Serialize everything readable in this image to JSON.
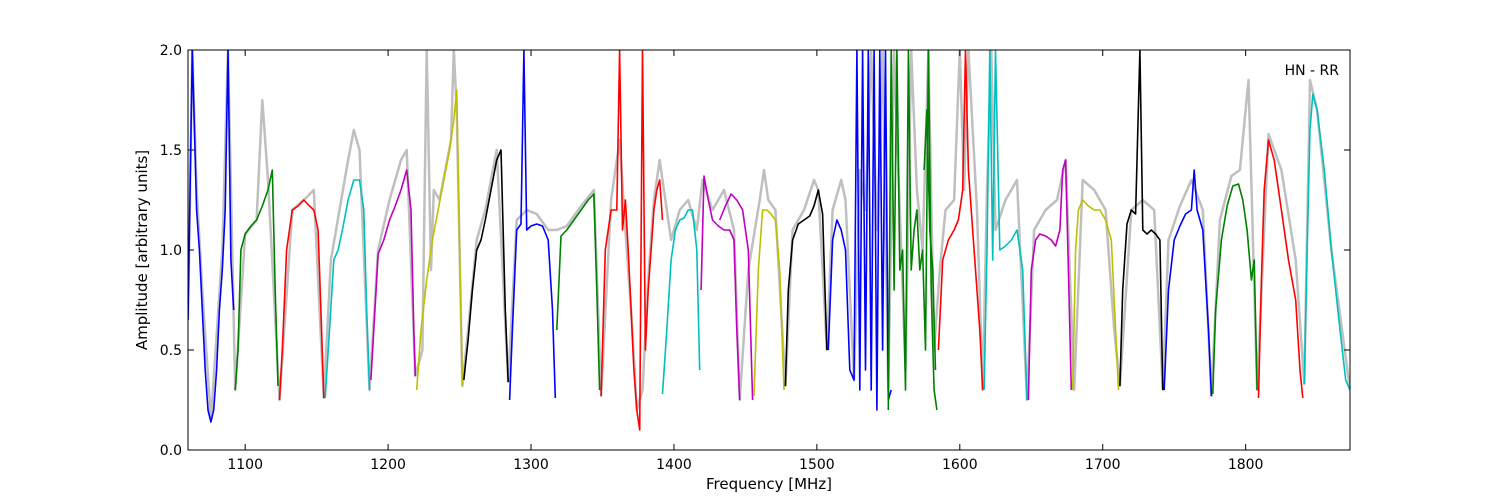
{
  "chart_data": {
    "type": "line",
    "title": "",
    "annotation": "HN - RR",
    "xlabel": "Frequency [MHz]",
    "ylabel": "Amplitude [arbitrary units]",
    "xlim": [
      1060,
      1873
    ],
    "ylim": [
      0.0,
      2.0
    ],
    "xticks": [
      1100,
      1200,
      1300,
      1400,
      1500,
      1600,
      1700,
      1800
    ],
    "xtick_labels": [
      "1100",
      "1200",
      "1300",
      "1400",
      "1500",
      "1600",
      "1700",
      "1800"
    ],
    "yticks": [
      0.0,
      0.5,
      1.0,
      1.5,
      2.0
    ],
    "ytick_labels": [
      "0.0",
      "0.5",
      "1.0",
      "1.5",
      "2.0"
    ],
    "grid": false,
    "colors": {
      "reference": "#bfbfbf",
      "cycle": [
        "#0000ff",
        "#008000",
        "#ff0000",
        "#00bfbf",
        "#bf00bf",
        "#bfbf00",
        "#000000"
      ]
    },
    "series": [
      {
        "color": "#0000ff",
        "x": [
          1060,
          1063,
          1066,
          1068,
          1070,
          1072,
          1074,
          1076,
          1078,
          1080,
          1082,
          1084,
          1086,
          1088,
          1090,
          1092
        ],
        "y": [
          0.65,
          2.0,
          1.2,
          1.0,
          0.7,
          0.4,
          0.2,
          0.14,
          0.2,
          0.4,
          0.7,
          0.9,
          1.2,
          2.0,
          0.95,
          0.7
        ]
      },
      {
        "color": "#008000",
        "x": [
          1093,
          1095,
          1097,
          1100,
          1104,
          1108,
          1112,
          1116,
          1119,
          1121,
          1123
        ],
        "y": [
          0.3,
          0.5,
          1.0,
          1.08,
          1.12,
          1.15,
          1.22,
          1.3,
          1.4,
          0.8,
          0.32
        ]
      },
      {
        "color": "#ff0000",
        "x": [
          1124,
          1126,
          1129,
          1133,
          1137,
          1141,
          1145,
          1148,
          1151,
          1153,
          1155
        ],
        "y": [
          0.25,
          0.5,
          1.0,
          1.2,
          1.22,
          1.25,
          1.22,
          1.2,
          1.1,
          0.7,
          0.26
        ]
      },
      {
        "color": "#00bfbf",
        "x": [
          1156,
          1159,
          1162,
          1165,
          1168,
          1172,
          1176,
          1180,
          1183,
          1185,
          1187
        ],
        "y": [
          0.26,
          0.6,
          0.95,
          1.0,
          1.1,
          1.25,
          1.35,
          1.35,
          1.2,
          0.7,
          0.3
        ]
      },
      {
        "color": "#bf00bf",
        "x": [
          1188,
          1190,
          1193,
          1197,
          1201,
          1205,
          1209,
          1213,
          1216,
          1218,
          1219
        ],
        "y": [
          0.35,
          0.6,
          0.98,
          1.05,
          1.15,
          1.22,
          1.3,
          1.4,
          1.2,
          0.6,
          0.37
        ]
      },
      {
        "color": "#bfbf00",
        "x": [
          1220,
          1223,
          1227,
          1231,
          1235,
          1239,
          1243,
          1246,
          1248,
          1250,
          1252
        ],
        "y": [
          0.3,
          0.6,
          0.85,
          1.05,
          1.2,
          1.35,
          1.5,
          1.65,
          1.8,
          1.0,
          0.32
        ]
      },
      {
        "color": "#000000",
        "x": [
          1253,
          1256,
          1259,
          1262,
          1265,
          1268,
          1272,
          1276,
          1279,
          1282,
          1284
        ],
        "y": [
          0.35,
          0.55,
          0.8,
          1.0,
          1.05,
          1.15,
          1.3,
          1.45,
          1.5,
          0.7,
          0.34
        ]
      },
      {
        "color": "#0000ff",
        "x": [
          1285,
          1287,
          1290,
          1293,
          1295,
          1297,
          1300,
          1304,
          1308,
          1312,
          1315,
          1317
        ],
        "y": [
          0.25,
          0.6,
          1.1,
          1.13,
          2.0,
          1.1,
          1.12,
          1.13,
          1.12,
          1.05,
          0.7,
          0.26
        ]
      },
      {
        "color": "#008000",
        "x": [
          1318,
          1321,
          1325,
          1330,
          1335,
          1340,
          1344,
          1346,
          1348
        ],
        "y": [
          0.6,
          1.07,
          1.1,
          1.15,
          1.2,
          1.25,
          1.28,
          0.8,
          0.3
        ]
      },
      {
        "color": "#ff0000",
        "x": [
          1349,
          1352,
          1356,
          1360,
          1362,
          1364,
          1366,
          1368,
          1370,
          1372,
          1374,
          1376,
          1378,
          1380,
          1382,
          1384,
          1386,
          1388,
          1390,
          1392
        ],
        "y": [
          0.27,
          1.0,
          1.2,
          1.2,
          2.0,
          1.1,
          1.25,
          1.0,
          0.7,
          0.4,
          0.2,
          0.1,
          2.0,
          0.5,
          0.8,
          1.0,
          1.2,
          1.3,
          1.35,
          1.15
        ]
      },
      {
        "color": "#00bfbf",
        "x": [
          1392,
          1395,
          1398,
          1401,
          1404,
          1407,
          1410,
          1413,
          1416,
          1418
        ],
        "y": [
          0.28,
          0.6,
          0.95,
          1.1,
          1.15,
          1.16,
          1.2,
          1.2,
          1.0,
          0.4
        ]
      },
      {
        "color": "#bf00bf",
        "x": [
          1419,
          1421,
          1424,
          1427,
          1431,
          1435,
          1439,
          1442,
          1444,
          1446
        ],
        "y": [
          0.8,
          1.37,
          1.25,
          1.15,
          1.12,
          1.1,
          1.1,
          1.05,
          0.6,
          0.25
        ]
      },
      {
        "color": "#bf00bf",
        "x": [
          1432,
          1436,
          1440,
          1444,
          1448,
          1452,
          1455
        ],
        "y": [
          1.15,
          1.22,
          1.28,
          1.25,
          1.2,
          1.0,
          0.25
        ]
      },
      {
        "color": "#bfbf00",
        "x": [
          1456,
          1459,
          1462,
          1465,
          1468,
          1471,
          1474,
          1477
        ],
        "y": [
          0.27,
          0.9,
          1.2,
          1.2,
          1.18,
          1.15,
          0.9,
          0.3
        ]
      },
      {
        "color": "#000000",
        "x": [
          1478,
          1480,
          1483,
          1487,
          1491,
          1495,
          1498,
          1501,
          1504,
          1507
        ],
        "y": [
          0.32,
          0.8,
          1.05,
          1.13,
          1.15,
          1.17,
          1.22,
          1.3,
          1.18,
          0.5
        ]
      },
      {
        "color": "#0000ff",
        "x": [
          1508,
          1511,
          1514,
          1517,
          1520,
          1523,
          1526,
          1528,
          1530,
          1532,
          1534,
          1536,
          1538,
          1540,
          1542,
          1544,
          1546,
          1548,
          1550,
          1552
        ],
        "y": [
          0.5,
          1.05,
          1.15,
          1.1,
          1.0,
          0.4,
          0.35,
          2.0,
          0.3,
          2.0,
          0.4,
          2.0,
          0.3,
          2.0,
          0.2,
          2.0,
          0.5,
          2.0,
          0.25,
          0.3
        ]
      },
      {
        "color": "#008000",
        "x": [
          1550,
          1552,
          1554,
          1556,
          1558,
          1560,
          1562,
          1564,
          1566,
          1568,
          1570,
          1572,
          1574,
          1576,
          1578,
          1580,
          1582,
          1584
        ],
        "y": [
          0.2,
          2.0,
          0.8,
          2.0,
          0.9,
          1.0,
          0.3,
          2.0,
          0.9,
          1.1,
          1.2,
          0.9,
          1.0,
          0.5,
          2.0,
          0.8,
          0.3,
          0.2
        ]
      },
      {
        "color": "#008000",
        "x": [
          1575,
          1577,
          1579,
          1581,
          1583
        ],
        "y": [
          1.4,
          1.7,
          1.1,
          0.9,
          0.4
        ]
      },
      {
        "color": "#ff0000",
        "x": [
          1585,
          1588,
          1592,
          1596,
          1599,
          1602,
          1604,
          1606,
          1610,
          1614,
          1616
        ],
        "y": [
          0.5,
          0.95,
          1.05,
          1.1,
          1.15,
          1.3,
          2.0,
          1.4,
          1.0,
          0.6,
          0.3
        ]
      },
      {
        "color": "#00bfbf",
        "x": [
          1617,
          1619,
          1621,
          1623,
          1625,
          1628,
          1632,
          1636,
          1640,
          1644,
          1647
        ],
        "y": [
          0.3,
          1.0,
          2.0,
          0.95,
          2.0,
          1.0,
          1.02,
          1.05,
          1.1,
          0.9,
          0.25
        ]
      },
      {
        "color": "#bf00bf",
        "x": [
          1648,
          1650,
          1653,
          1656,
          1660,
          1664,
          1667,
          1670,
          1672,
          1674,
          1676,
          1678
        ],
        "y": [
          0.25,
          0.9,
          1.05,
          1.08,
          1.07,
          1.05,
          1.02,
          1.1,
          1.4,
          1.45,
          0.9,
          0.3
        ]
      },
      {
        "color": "#bfbf00",
        "x": [
          1679,
          1681,
          1683,
          1686,
          1690,
          1694,
          1698,
          1702,
          1706,
          1709,
          1711
        ],
        "y": [
          0.3,
          1.0,
          1.2,
          1.25,
          1.22,
          1.2,
          1.2,
          1.15,
          1.05,
          0.6,
          0.3
        ]
      },
      {
        "color": "#000000",
        "x": [
          1712,
          1714,
          1717,
          1720,
          1723,
          1726,
          1728,
          1731,
          1734,
          1737,
          1740,
          1742
        ],
        "y": [
          0.32,
          0.8,
          1.13,
          1.2,
          1.18,
          2.0,
          1.1,
          1.08,
          1.1,
          1.08,
          1.05,
          0.3
        ]
      },
      {
        "color": "#0000ff",
        "x": [
          1743,
          1746,
          1750,
          1754,
          1758,
          1762,
          1764,
          1766,
          1770,
          1774,
          1776
        ],
        "y": [
          0.3,
          0.8,
          1.05,
          1.12,
          1.18,
          1.2,
          1.4,
          1.2,
          1.1,
          0.6,
          0.27
        ]
      },
      {
        "color": "#008000",
        "x": [
          1777,
          1779,
          1783,
          1787,
          1791,
          1795,
          1798,
          1801,
          1804,
          1806,
          1808
        ],
        "y": [
          0.28,
          0.7,
          1.05,
          1.22,
          1.32,
          1.33,
          1.25,
          1.1,
          0.85,
          0.95,
          0.3
        ]
      },
      {
        "color": "#ff0000",
        "x": [
          1809,
          1811,
          1813,
          1816,
          1820,
          1825,
          1830,
          1835,
          1838,
          1840
        ],
        "y": [
          0.26,
          0.85,
          1.3,
          1.55,
          1.45,
          1.2,
          0.95,
          0.75,
          0.4,
          0.26
        ]
      },
      {
        "color": "#00bfbf",
        "x": [
          1841,
          1843,
          1845,
          1847,
          1850,
          1855,
          1860,
          1866,
          1870,
          1873
        ],
        "y": [
          0.33,
          1.0,
          1.6,
          1.78,
          1.7,
          1.4,
          1.0,
          0.6,
          0.35,
          0.3
        ]
      }
    ],
    "reference": {
      "color": "#bfbf00",
      "x": [
        1060,
        1063,
        1066,
        1070,
        1076,
        1084,
        1088,
        1093,
        1100,
        1108,
        1112,
        1116,
        1124,
        1133,
        1141,
        1148,
        1155,
        1160,
        1166,
        1172,
        1176,
        1180,
        1187,
        1193,
        1201,
        1209,
        1213,
        1219,
        1224,
        1227,
        1230,
        1232,
        1236,
        1244,
        1246,
        1248,
        1252,
        1256,
        1262,
        1268,
        1276,
        1284,
        1290,
        1297,
        1304,
        1312,
        1318,
        1325,
        1335,
        1344,
        1349,
        1356,
        1362,
        1366,
        1370,
        1374,
        1378,
        1382,
        1386,
        1390,
        1392,
        1398,
        1404,
        1410,
        1416,
        1420,
        1427,
        1435,
        1442,
        1446,
        1452,
        1460,
        1463,
        1466,
        1471,
        1478,
        1483,
        1491,
        1498,
        1501,
        1507,
        1511,
        1517,
        1520,
        1526,
        1530,
        1534,
        1538,
        1542,
        1546,
        1550,
        1554,
        1558,
        1562,
        1566,
        1570,
        1574,
        1578,
        1582,
        1586,
        1590,
        1596,
        1600,
        1603,
        1606,
        1612,
        1616,
        1619,
        1622,
        1625,
        1632,
        1640,
        1647,
        1652,
        1660,
        1668,
        1674,
        1680,
        1686,
        1694,
        1702,
        1708,
        1712,
        1720,
        1728,
        1736,
        1742,
        1746,
        1754,
        1762,
        1770,
        1776,
        1782,
        1790,
        1796,
        1802,
        1808,
        1816,
        1825,
        1835,
        1841,
        1845,
        1850,
        1860,
        1873
      ],
      "y": [
        0.65,
        2.0,
        1.3,
        0.8,
        0.15,
        1.0,
        2.0,
        0.3,
        1.08,
        1.15,
        1.75,
        1.35,
        0.25,
        1.2,
        1.25,
        1.3,
        0.26,
        0.95,
        1.2,
        1.45,
        1.6,
        1.5,
        0.3,
        1.0,
        1.25,
        1.45,
        1.5,
        0.37,
        0.5,
        2.0,
        0.9,
        1.3,
        1.25,
        1.55,
        2.0,
        1.7,
        0.32,
        0.6,
        1.05,
        1.2,
        1.5,
        0.34,
        1.15,
        1.2,
        1.18,
        1.1,
        1.1,
        1.12,
        1.22,
        1.3,
        0.27,
        1.25,
        1.55,
        1.1,
        0.7,
        0.2,
        0.3,
        0.85,
        1.25,
        1.45,
        1.35,
        1.05,
        1.2,
        1.25,
        1.1,
        1.35,
        1.2,
        1.3,
        1.1,
        0.25,
        0.9,
        1.25,
        1.4,
        1.25,
        1.2,
        0.32,
        1.1,
        1.2,
        1.35,
        1.3,
        0.5,
        1.2,
        1.35,
        1.25,
        0.35,
        1.4,
        1.2,
        2.0,
        1.1,
        2.0,
        0.3,
        2.0,
        1.2,
        0.4,
        2.0,
        1.3,
        1.0,
        2.0,
        0.5,
        0.9,
        1.2,
        1.25,
        2.0,
        1.3,
        2.0,
        1.2,
        0.3,
        1.3,
        2.0,
        1.1,
        1.25,
        1.35,
        0.25,
        1.1,
        1.2,
        1.25,
        1.45,
        0.3,
        1.35,
        1.3,
        1.2,
        0.6,
        0.32,
        1.2,
        1.25,
        1.2,
        0.3,
        1.05,
        1.22,
        1.35,
        1.2,
        0.27,
        1.15,
        1.37,
        1.4,
        1.85,
        0.3,
        1.58,
        1.4,
        0.95,
        0.33,
        1.85,
        1.7,
        1.0,
        0.3
      ]
    }
  }
}
